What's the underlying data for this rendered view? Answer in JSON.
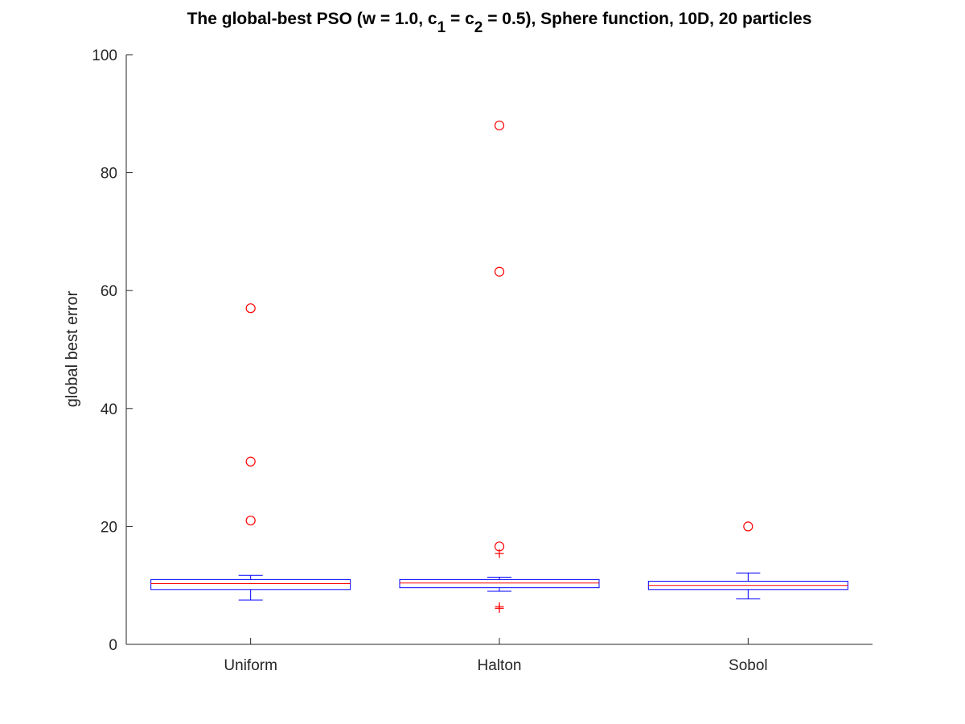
{
  "chart_data": {
    "type": "box",
    "title": {
      "prefix": "The global-best PSO (w = 1.0, c",
      "sub1": "1",
      "middle": " = c",
      "sub2": "2",
      "suffix": " = 0.5), Sphere function, 10D, 20 particles"
    },
    "ylabel": "global best error",
    "xlabel": "",
    "ylim": [
      0,
      100
    ],
    "yticks": [
      0,
      20,
      40,
      60,
      80,
      100
    ],
    "categories": [
      "Uniform",
      "Halton",
      "Sobol"
    ],
    "boxes": [
      {
        "name": "Uniform",
        "q1": 9.3,
        "median": 10.3,
        "q3": 11.0,
        "whisker_low": 7.5,
        "whisker_high": 11.7,
        "outliers_circle": [
          57.0,
          31.0,
          21.0
        ],
        "outliers_plus": []
      },
      {
        "name": "Halton",
        "q1": 9.6,
        "median": 10.4,
        "q3": 11.0,
        "whisker_low": 9.0,
        "whisker_high": 11.4,
        "outliers_circle": [
          88.0,
          63.2,
          16.6
        ],
        "outliers_plus": [
          15.4,
          6.4,
          6.1
        ]
      },
      {
        "name": "Sobol",
        "q1": 9.3,
        "median": 10.0,
        "q3": 10.7,
        "whisker_low": 7.7,
        "whisker_high": 12.1,
        "outliers_circle": [
          20.0
        ],
        "outliers_plus": []
      }
    ],
    "colors": {
      "box": "#0000ff",
      "median": "#ff0000",
      "outlier": "#ff0000",
      "axis": "#262626"
    },
    "grid": false,
    "box_style": "outline"
  }
}
